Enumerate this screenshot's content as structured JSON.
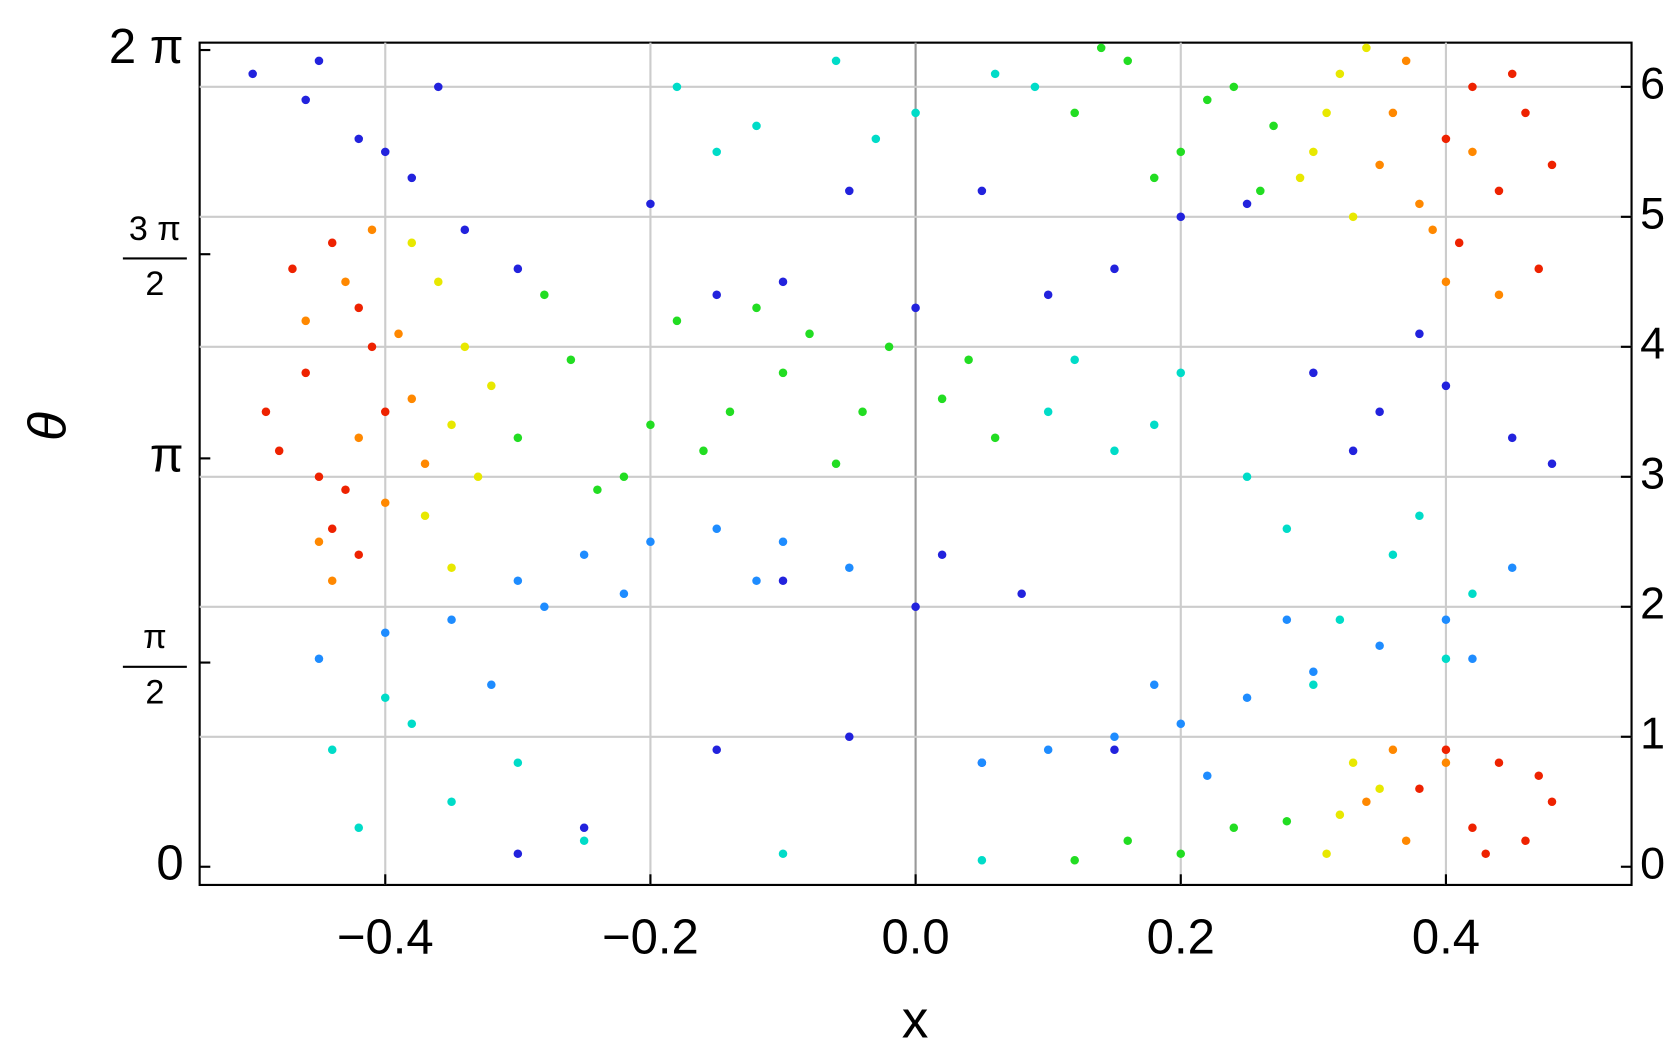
{
  "chart_data": {
    "type": "scatter",
    "x_label": "x",
    "y_label": "θ",
    "xlim": [
      -0.54,
      0.54
    ],
    "ylim": [
      -0.14,
      6.34
    ],
    "y2lim": [
      -0.14,
      6.34
    ],
    "xticks": [
      {
        "value": -0.4,
        "label": "−0.4"
      },
      {
        "value": -0.2,
        "label": "−0.2"
      },
      {
        "value": 0,
        "label": "0.0"
      },
      0.2,
      0.4
    ],
    "yticks": [
      0,
      {
        "value": 1.5708,
        "label": "π/2"
      },
      {
        "value": 3.1416,
        "label": "π"
      },
      {
        "value": 4.7124,
        "label": "3 π/2"
      },
      {
        "value": 6.2832,
        "label": "2 π"
      }
    ],
    "y2ticks": [
      0,
      1,
      2,
      3,
      4,
      5,
      6
    ],
    "grid": true,
    "series": [
      {
        "color": "#2222dd",
        "x": [
          -0.5,
          -0.46,
          -0.42,
          -0.38,
          -0.34,
          -0.3,
          -0.45,
          -0.4,
          -0.36,
          -0.2,
          -0.15,
          -0.1,
          0.0,
          0.1,
          0.15,
          0.2,
          0.25,
          -0.05,
          0.05,
          0.3,
          0.35,
          0.4,
          0.45,
          0.48,
          0.38,
          0.33,
          -0.15,
          -0.05,
          0.05,
          0.0,
          -0.1,
          0.02,
          0.08,
          -0.25,
          -0.3,
          0.15
        ],
        "y": [
          6.1,
          5.9,
          5.6,
          5.3,
          4.9,
          4.6,
          6.2,
          5.5,
          6.0,
          5.1,
          4.4,
          4.5,
          4.3,
          4.4,
          4.6,
          5.0,
          5.1,
          5.2,
          5.2,
          3.8,
          3.5,
          3.7,
          3.3,
          3.1,
          4.1,
          3.2,
          0.9,
          1.0,
          0.8,
          2.0,
          2.2,
          2.4,
          2.1,
          0.3,
          0.1,
          0.9
        ]
      },
      {
        "color": "#1e8cff",
        "x": [
          -0.35,
          -0.3,
          -0.25,
          -0.2,
          -0.15,
          -0.1,
          -0.05,
          -0.45,
          -0.4,
          -0.32,
          -0.28,
          0.05,
          0.1,
          0.15,
          0.2,
          0.25,
          0.3,
          0.35,
          0.4,
          0.18,
          0.22,
          -0.12,
          -0.22,
          0.28,
          0.45,
          0.42
        ],
        "y": [
          1.9,
          2.2,
          2.4,
          2.5,
          2.6,
          2.5,
          2.3,
          1.6,
          1.8,
          1.4,
          2.0,
          0.8,
          0.9,
          1.0,
          1.1,
          1.3,
          1.5,
          1.7,
          1.9,
          1.4,
          0.7,
          2.2,
          2.1,
          1.9,
          2.3,
          1.6
        ]
      },
      {
        "color": "#00dcc8",
        "x": [
          -0.18,
          -0.12,
          -0.06,
          0.0,
          0.06,
          -0.15,
          -0.03,
          0.09,
          0.1,
          0.15,
          0.2,
          0.25,
          0.12,
          0.18,
          -0.44,
          -0.4,
          -0.35,
          -0.3,
          -0.42,
          -0.25,
          -0.38,
          0.28,
          0.32,
          0.36,
          0.4,
          0.3,
          0.38,
          0.42,
          -0.1,
          0.05
        ],
        "y": [
          6.0,
          5.7,
          6.2,
          5.8,
          6.1,
          5.5,
          5.6,
          6.0,
          3.5,
          3.2,
          3.8,
          3.0,
          3.9,
          3.4,
          0.9,
          1.3,
          0.5,
          0.8,
          0.3,
          0.2,
          1.1,
          2.6,
          1.9,
          2.4,
          1.6,
          1.4,
          2.7,
          2.1,
          0.1,
          0.05
        ]
      },
      {
        "color": "#22dd22",
        "x": [
          -0.3,
          -0.26,
          -0.22,
          -0.18,
          -0.14,
          -0.1,
          -0.06,
          -0.02,
          0.02,
          0.06,
          -0.28,
          -0.2,
          -0.12,
          -0.04,
          0.04,
          -0.24,
          -0.16,
          -0.08,
          0.12,
          0.16,
          0.2,
          0.24,
          0.27,
          0.14,
          0.18,
          0.22,
          0.26,
          0.16,
          0.2,
          0.24,
          0.28,
          0.12
        ],
        "y": [
          3.3,
          3.9,
          3.0,
          4.2,
          3.5,
          3.8,
          3.1,
          4.0,
          3.6,
          3.3,
          4.4,
          3.4,
          4.3,
          3.5,
          3.9,
          2.9,
          3.2,
          4.1,
          5.8,
          6.2,
          5.5,
          6.0,
          5.7,
          6.3,
          5.3,
          5.9,
          5.2,
          0.2,
          0.1,
          0.3,
          0.35,
          0.05
        ]
      },
      {
        "color": "#e8e800",
        "x": [
          -0.37,
          -0.35,
          -0.34,
          -0.36,
          -0.33,
          -0.35,
          -0.32,
          -0.38,
          0.3,
          0.32,
          0.33,
          0.31,
          0.34,
          0.29,
          0.32,
          0.33,
          0.31,
          0.35
        ],
        "y": [
          2.7,
          3.4,
          4.0,
          4.5,
          3.0,
          2.3,
          3.7,
          4.8,
          5.5,
          6.1,
          5.0,
          5.8,
          6.3,
          5.3,
          0.4,
          0.8,
          0.1,
          0.6
        ]
      },
      {
        "color": "#ff8800",
        "x": [
          -0.45,
          -0.42,
          -0.39,
          -0.4,
          -0.43,
          -0.38,
          -0.44,
          -0.41,
          -0.37,
          -0.46,
          0.36,
          0.38,
          0.4,
          0.37,
          0.42,
          0.39,
          0.44,
          0.35,
          0.34,
          0.37,
          0.4,
          0.36
        ],
        "y": [
          2.5,
          3.3,
          4.1,
          2.8,
          4.5,
          3.6,
          2.2,
          4.9,
          3.1,
          4.2,
          5.8,
          5.1,
          4.5,
          6.2,
          5.5,
          4.9,
          4.4,
          5.4,
          0.5,
          0.2,
          0.8,
          0.9
        ]
      },
      {
        "color": "#ee2200",
        "x": [
          -0.48,
          -0.46,
          -0.44,
          -0.42,
          -0.4,
          -0.47,
          -0.45,
          -0.43,
          -0.41,
          -0.49,
          -0.44,
          -0.42,
          0.4,
          0.42,
          0.44,
          0.46,
          0.48,
          0.41,
          0.45,
          0.47,
          0.38,
          0.42,
          0.44,
          0.46,
          0.48,
          0.4,
          0.43,
          0.47
        ],
        "y": [
          3.2,
          3.8,
          2.6,
          4.3,
          3.5,
          4.6,
          3.0,
          2.9,
          4.0,
          3.5,
          4.8,
          2.4,
          5.6,
          6.0,
          5.2,
          5.8,
          5.4,
          4.8,
          6.1,
          4.6,
          0.6,
          0.3,
          0.8,
          0.2,
          0.5,
          0.9,
          0.1,
          0.7
        ]
      }
    ]
  }
}
